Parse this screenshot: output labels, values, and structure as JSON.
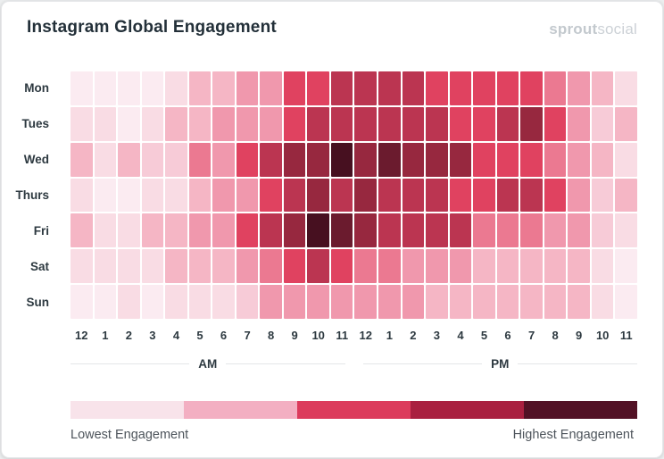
{
  "header": {
    "title": "Instagram Global Engagement",
    "logo": {
      "bold": "sprout",
      "light": "social"
    }
  },
  "legend": {
    "low_label": "Lowest Engagement",
    "high_label": "Highest Engagement",
    "colors": [
      "#F8E3EA",
      "#F3AFC2",
      "#DC3B5C",
      "#A92040",
      "#521125"
    ]
  },
  "chart_data": {
    "type": "heatmap",
    "title": "Instagram Global Engagement",
    "value_scale": "relative engagement level, 1 = lowest to 11 = highest (estimated from cell color)",
    "rows": [
      "Mon",
      "Tues",
      "Wed",
      "Thurs",
      "Fri",
      "Sat",
      "Sun"
    ],
    "columns": [
      "12",
      "1",
      "2",
      "3",
      "4",
      "5",
      "6",
      "7",
      "8",
      "9",
      "10",
      "11",
      "12",
      "1",
      "2",
      "3",
      "4",
      "5",
      "6",
      "7",
      "8",
      "9",
      "10",
      "11"
    ],
    "column_groups": [
      {
        "label": "AM",
        "span": 12
      },
      {
        "label": "PM",
        "span": 12
      }
    ],
    "palette": [
      "#FBEBF1",
      "#F9DCE4",
      "#F7CBD7",
      "#F5B6C5",
      "#F098AD",
      "#EB7991",
      "#E04260",
      "#BB3551",
      "#97283F",
      "#6B1B2E",
      "#471020"
    ],
    "values": [
      [
        1,
        1,
        1,
        1,
        2,
        4,
        4,
        5,
        5,
        7,
        7,
        8,
        8,
        8,
        8,
        7,
        7,
        7,
        7,
        7,
        6,
        5,
        4,
        2
      ],
      [
        2,
        2,
        1,
        2,
        4,
        4,
        5,
        5,
        5,
        7,
        8,
        8,
        8,
        8,
        8,
        8,
        7,
        7,
        8,
        9,
        7,
        5,
        3,
        4
      ],
      [
        4,
        2,
        4,
        3,
        3,
        6,
        5,
        7,
        8,
        9,
        9,
        11,
        9,
        10,
        9,
        9,
        9,
        7,
        7,
        7,
        6,
        5,
        4,
        2
      ],
      [
        2,
        1,
        1,
        2,
        2,
        4,
        5,
        5,
        7,
        8,
        9,
        8,
        9,
        8,
        8,
        8,
        7,
        7,
        8,
        8,
        7,
        5,
        3,
        4
      ],
      [
        4,
        2,
        2,
        4,
        4,
        5,
        5,
        7,
        8,
        9,
        11,
        10,
        9,
        8,
        8,
        8,
        8,
        6,
        6,
        6,
        5,
        5,
        3,
        2
      ],
      [
        2,
        2,
        2,
        2,
        4,
        4,
        4,
        5,
        6,
        7,
        8,
        7,
        6,
        6,
        5,
        5,
        5,
        4,
        4,
        4,
        4,
        4,
        2,
        1
      ],
      [
        1,
        1,
        2,
        1,
        2,
        2,
        2,
        3,
        5,
        5,
        5,
        5,
        5,
        5,
        5,
        4,
        4,
        4,
        4,
        4,
        4,
        4,
        2,
        1
      ]
    ],
    "legend_low_label": "Lowest Engagement",
    "legend_high_label": "Highest Engagement"
  }
}
